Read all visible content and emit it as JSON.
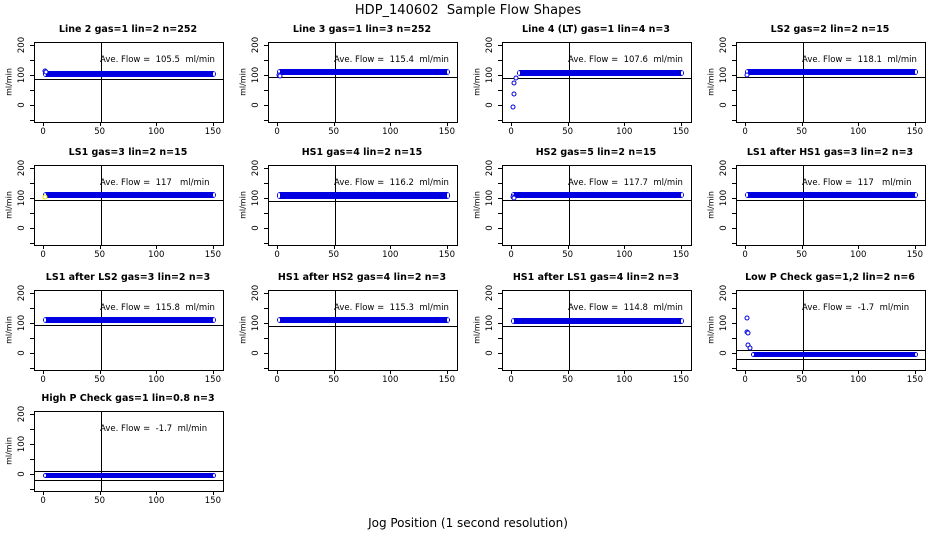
{
  "page": {
    "main_title": "HDP_140602  Sample Flow Shapes",
    "x_axis_title": "Jog Position (1 second resolution)"
  },
  "chart_data": {
    "type": "scatter",
    "grid_cols": 4,
    "point_color": "#0000E0",
    "axis": {
      "ylabel": "ml/min",
      "x_ticks": [
        0,
        50,
        100,
        150
      ],
      "y_ticks_all": [
        -50,
        0,
        50,
        100,
        150,
        200
      ],
      "y_ticks_labeled": [
        0,
        100,
        200
      ],
      "xlim": [
        -8,
        158
      ],
      "ylim": [
        -55,
        210
      ],
      "vline_x": 50,
      "grid": "vline-at-50-only",
      "legend": "none"
    },
    "band_x_range": [
      -1,
      152
    ],
    "plots": [
      {
        "title": "Line 2 gas=1 lin=2 n=252",
        "gas": "1",
        "lin": "2",
        "n": 252,
        "ave_flow": 105.5,
        "ave_text": "Ave. Flow =  105.5  ml/min",
        "band_y": 106,
        "band_half": 11,
        "ref_lines": [
          88
        ],
        "points": [
          [
            1,
            116
          ],
          [
            2,
            113
          ]
        ]
      },
      {
        "title": "Line 3 gas=1 lin=3 n=252",
        "gas": "1",
        "lin": "3",
        "n": 252,
        "ave_flow": 115.4,
        "ave_text": "Ave. Flow =  115.4  ml/min",
        "band_y": 112,
        "band_half": 11,
        "ref_lines": [
          95
        ],
        "points": [
          [
            1,
            103
          ],
          [
            2,
            101
          ]
        ]
      },
      {
        "title": "Line 4 (LT) gas=1 lin=4 n=3",
        "gas": "1",
        "lin": "4",
        "n": 3,
        "ave_flow": 107.6,
        "ave_text": "Ave. Flow =  107.6  ml/min",
        "band_y": 110,
        "band_half": 10,
        "ref_lines": [
          92
        ],
        "band_x_start": 4,
        "points": [
          [
            1,
            -5
          ],
          [
            2,
            40
          ],
          [
            2,
            75
          ],
          [
            3,
            93
          ]
        ]
      },
      {
        "title": "LS2 gas=2 lin=2 n=15",
        "gas": "2",
        "lin": "2",
        "n": 15,
        "ave_flow": 118.1,
        "ave_text": "Ave. Flow =  118.1  ml/min",
        "band_y": 113,
        "band_half": 11,
        "ref_lines": [
          96
        ],
        "points": [
          [
            1,
            104
          ]
        ]
      },
      {
        "title": "LS1 gas=3 lin=2 n=15",
        "gas": "3",
        "lin": "2",
        "n": 15,
        "ave_flow": 117,
        "ave_text": "Ave. Flow =  117   ml/min",
        "band_y": 112,
        "band_half": 11,
        "ref_lines": [
          95
        ],
        "points": [
          [
            1,
            106,
            "#e8e800"
          ]
        ]
      },
      {
        "title": "HS1 gas=4 lin=2 n=15",
        "gas": "4",
        "lin": "2",
        "n": 15,
        "ave_flow": 116.2,
        "ave_text": "Ave. Flow =  116.2  ml/min",
        "band_y": 112,
        "band_half": 12,
        "ref_lines": [
          94
        ],
        "points": []
      },
      {
        "title": "HS2 gas=5 lin=2 n=15",
        "gas": "5",
        "lin": "2",
        "n": 15,
        "ave_flow": 117.7,
        "ave_text": "Ave. Flow =  117.7  ml/min",
        "band_y": 113,
        "band_half": 11,
        "ref_lines": [
          95
        ],
        "points": [
          [
            1,
            107
          ],
          [
            2,
            104
          ]
        ]
      },
      {
        "title": "LS1 after HS1 gas=3 lin=2 n=3",
        "gas": "3",
        "lin": "2",
        "n": 3,
        "ave_flow": 117,
        "ave_text": "Ave. Flow =  117   ml/min",
        "band_y": 112,
        "band_half": 11,
        "ref_lines": [
          95
        ],
        "points": []
      },
      {
        "title": "LS1 after LS2 gas=3 lin=2 n=3",
        "gas": "3",
        "lin": "2",
        "n": 3,
        "ave_flow": 115.8,
        "ave_text": "Ave. Flow =  115.8  ml/min",
        "band_y": 112,
        "band_half": 10,
        "ref_lines": [
          95
        ],
        "points": []
      },
      {
        "title": "HS1 after HS2 gas=4 lin=2 n=3",
        "gas": "4",
        "lin": "2",
        "n": 3,
        "ave_flow": 115.3,
        "ave_text": "Ave. Flow =  115.3  ml/min",
        "band_y": 112,
        "band_half": 10,
        "ref_lines": [
          94
        ],
        "points": []
      },
      {
        "title": "HS1 after LS1 gas=4 lin=2 n=3",
        "gas": "4",
        "lin": "2",
        "n": 3,
        "ave_flow": 114.8,
        "ave_text": "Ave. Flow =  114.8  ml/min",
        "band_y": 111,
        "band_half": 10,
        "ref_lines": [
          93
        ],
        "points": []
      },
      {
        "title": "Low P Check gas=1,2 lin=2 n=6",
        "gas": "1,2",
        "lin": "2",
        "n": 6,
        "ave_flow": -1.7,
        "ave_text": "Ave. Flow =  -1.7  ml/min",
        "band_y": -3,
        "band_half": 8,
        "ref_lines": [
          12,
          -19
        ],
        "band_x_start": 4,
        "points": [
          [
            1,
            120
          ],
          [
            1,
            73
          ],
          [
            2,
            70
          ],
          [
            2,
            28
          ],
          [
            3,
            20
          ]
        ]
      },
      {
        "title": "High P Check gas=1 lin=0.8 n=3",
        "gas": "1",
        "lin": "0.8",
        "n": 3,
        "ave_flow": -1.7,
        "ave_text": "Ave. Flow =  -1.7  ml/min",
        "band_y": -3,
        "band_half": 8,
        "ref_lines": [
          12,
          -19
        ],
        "points": []
      }
    ]
  }
}
